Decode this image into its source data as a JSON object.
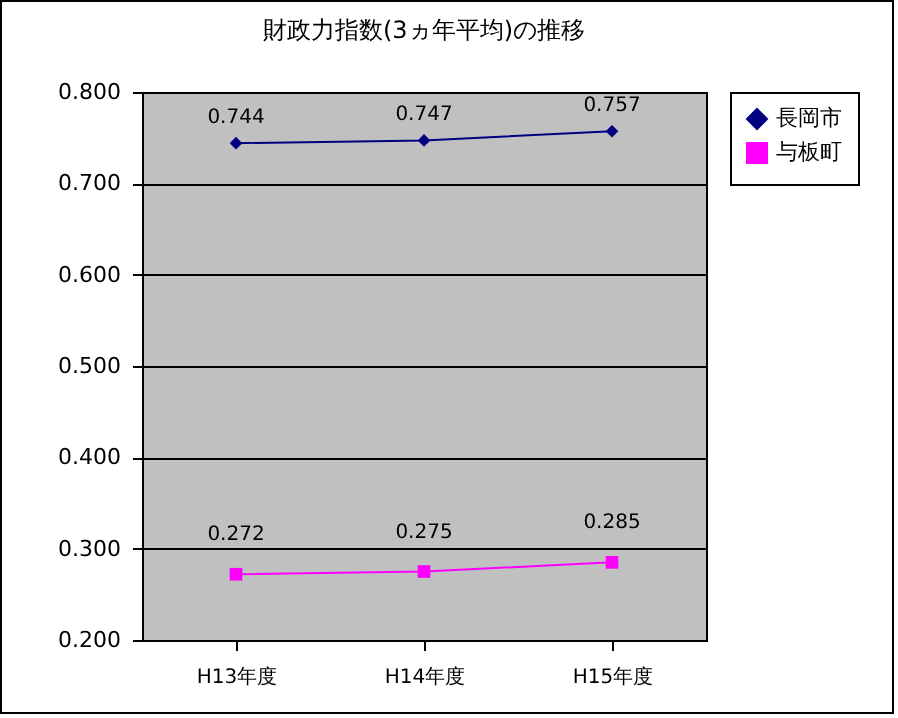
{
  "chart_data": {
    "type": "line",
    "title": "財政力指数(3ヵ年平均)の推移",
    "categories": [
      "H13年度",
      "H14年度",
      "H15年度"
    ],
    "series": [
      {
        "name": "長岡市",
        "color": "#000080",
        "marker": "diamond",
        "values": [
          0.744,
          0.747,
          0.757
        ]
      },
      {
        "name": "与板町",
        "color": "#ff00ff",
        "marker": "square",
        "values": [
          0.272,
          0.275,
          0.285
        ]
      }
    ],
    "ylim": [
      0.2,
      0.8
    ],
    "yticks": [
      {
        "value": 0.2,
        "label": "0.200"
      },
      {
        "value": 0.3,
        "label": "0.300"
      },
      {
        "value": 0.4,
        "label": "0.400"
      },
      {
        "value": 0.5,
        "label": "0.500"
      },
      {
        "value": 0.6,
        "label": "0.600"
      },
      {
        "value": 0.7,
        "label": "0.700"
      },
      {
        "value": 0.8,
        "label": "0.800"
      }
    ],
    "grid": "y",
    "legend": "right",
    "data_labels": true
  }
}
